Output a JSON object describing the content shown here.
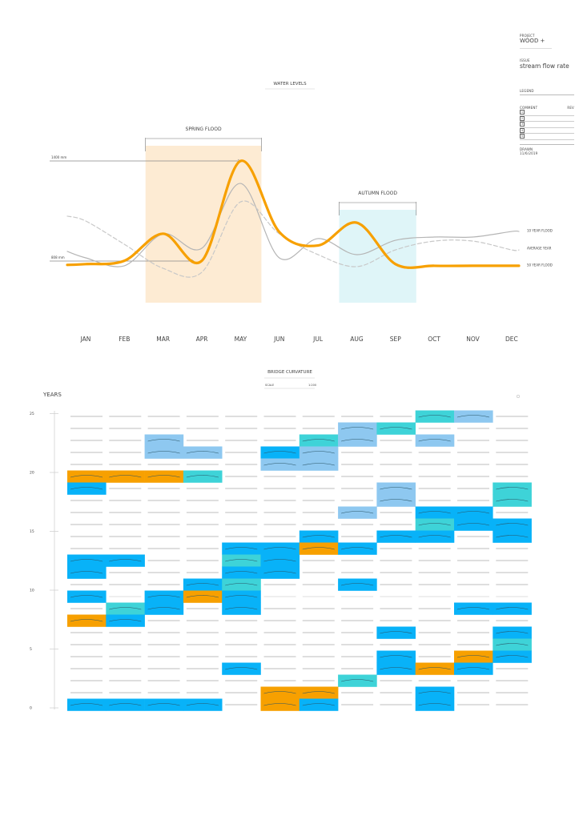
{
  "info": {
    "project_label": "PROJECT",
    "project": "WOOD +",
    "issue_label": "ISSUE",
    "issue": "stream flow rate",
    "legend_label": "LEGEND",
    "comment_label": "COMMENT",
    "rev_label": "REV",
    "comments": [
      "1",
      "2",
      "3",
      "4",
      "5"
    ],
    "drawn_label": "DRAWN",
    "drawn_date": "11/6/2019"
  },
  "chart_data": [
    {
      "type": "line",
      "title": "WATER LEVELS",
      "categories": [
        "JAN",
        "FEB",
        "MAR",
        "APR",
        "MAY",
        "JUN",
        "JUL",
        "AUG",
        "SEP",
        "OCT",
        "NOV",
        "DEC"
      ],
      "units": "mm",
      "reference_lines": [
        {
          "label": "1400 mm",
          "value": 1400
        },
        {
          "label": "808 mm",
          "value": 808
        }
      ],
      "periods": [
        {
          "label": "SPRING FLOOD",
          "from": "MAR",
          "to": "MAY",
          "color": "#fdebd3"
        },
        {
          "label": "AUTUMN FLOOD",
          "from": "AUG",
          "to": "SEP",
          "color": "#dff5f8"
        }
      ],
      "series": [
        {
          "name": "10 YEAR FLOOD",
          "style": "solid",
          "color": "#b5b5b5",
          "values": [
            827,
            780,
            969,
            884,
            1267,
            827,
            941,
            846,
            931,
            950,
            950,
            983
          ]
        },
        {
          "name": "AVERAGE YEAR",
          "style": "dashed",
          "color": "#c8c8c8",
          "values": [
            1045,
            907,
            765,
            742,
            1158,
            969,
            846,
            775,
            874,
            926,
            926,
            874
          ]
        },
        {
          "name": "50 YEAR FLOOD",
          "style": "bold",
          "color": "#f7a000",
          "values": [
            790,
            810,
            970,
            810,
            1400,
            980,
            900,
            1035,
            790,
            780,
            780,
            780
          ]
        }
      ]
    },
    {
      "type": "heatmap",
      "title": "BRIDGE CURVATURE",
      "scale_label": "SCALE",
      "scale_value": "1:200",
      "ylabel": "YEARS",
      "yticks": [
        25,
        20,
        15,
        10,
        5,
        0
      ],
      "columns": [
        "JAN",
        "FEB",
        "MAR",
        "APR",
        "MAY",
        "JUN",
        "JUL",
        "AUG",
        "SEP",
        "OCT",
        "NOV",
        "DEC"
      ],
      "legend_codes": {
        "o": "#f7a000",
        "b": "#08b2f8",
        "t": "#3ed3d8",
        "l": "#8ec8f0"
      },
      "rows_top_to_bottom": [
        ".........tl.",
        ".......lt...",
        "..l...tl.l..",
        "..ll.bl.....",
        ".....ll.....",
        "ooot........",
        "b.......l..t",
        "........l..t",
        ".......l.bb.",
        ".........tbb",
        "......b.bb.b",
        "....bbob....",
        "bb..tb......",
        "b...bb......",
        "...bt..b....",
        "b.bob.......",
        ".tb.b.....bb",
        "ob..........",
        "........b..b",
        "...........t",
        "........b.ob",
        "....b...bob.",
        ".......t....",
        ".....oo..b..",
        "bbbb.ob..b.."
      ]
    }
  ]
}
